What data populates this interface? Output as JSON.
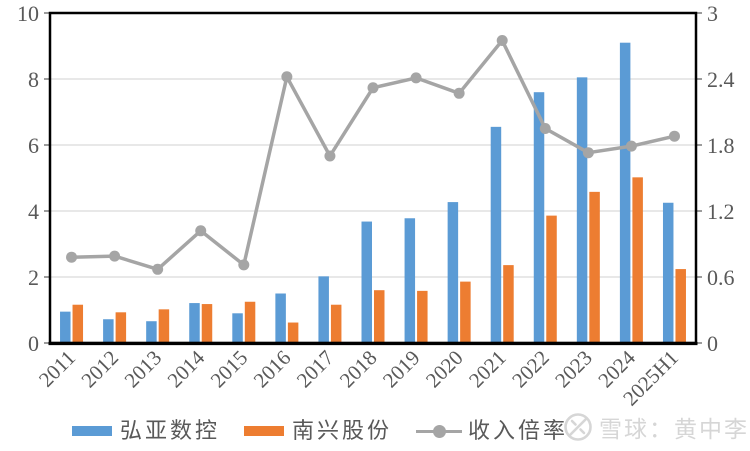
{
  "chart_data": {
    "type": "combo",
    "categories": [
      "2011",
      "2012",
      "2013",
      "2014",
      "2015",
      "2016",
      "2017",
      "2018",
      "2019",
      "2020",
      "2021",
      "2022",
      "2023",
      "2024",
      "2025H1"
    ],
    "series": [
      {
        "name": "弘亚数控",
        "type": "bar",
        "axis": "left",
        "color": "#5B9BD5",
        "values": [
          0.95,
          0.72,
          0.66,
          1.21,
          0.9,
          1.5,
          2.02,
          3.68,
          3.78,
          4.27,
          6.55,
          7.6,
          8.05,
          9.1,
          4.25
        ]
      },
      {
        "name": "南兴股份",
        "type": "bar",
        "axis": "left",
        "color": "#ED7D31",
        "values": [
          1.16,
          0.93,
          1.02,
          1.18,
          1.25,
          0.62,
          1.16,
          1.6,
          1.58,
          1.86,
          2.36,
          3.86,
          4.58,
          5.02,
          2.24
        ]
      },
      {
        "name": "收入倍率",
        "type": "line",
        "axis": "right",
        "color": "#A5A5A5",
        "values": [
          0.78,
          0.79,
          0.67,
          1.02,
          0.71,
          2.42,
          1.7,
          2.32,
          2.41,
          2.27,
          2.75,
          1.95,
          1.73,
          1.79,
          1.88
        ]
      }
    ],
    "left_axis": {
      "min": 0,
      "max": 10,
      "step": 2,
      "tick_labels": [
        "0",
        "2",
        "4",
        "6",
        "8",
        "10"
      ]
    },
    "right_axis": {
      "min": 0,
      "max": 3,
      "step": 0.6,
      "tick_labels": [
        "0",
        "0.6",
        "1.2",
        "1.8",
        "2.4",
        "3"
      ]
    },
    "grid": true,
    "legend_position": "bottom",
    "colors": {
      "gridline": "#d9d9d9",
      "axis_text": "#595959",
      "plot_border": "#000000"
    }
  },
  "watermark": {
    "logo": "xueqiu-logo",
    "text": "雪球：黄中李"
  }
}
